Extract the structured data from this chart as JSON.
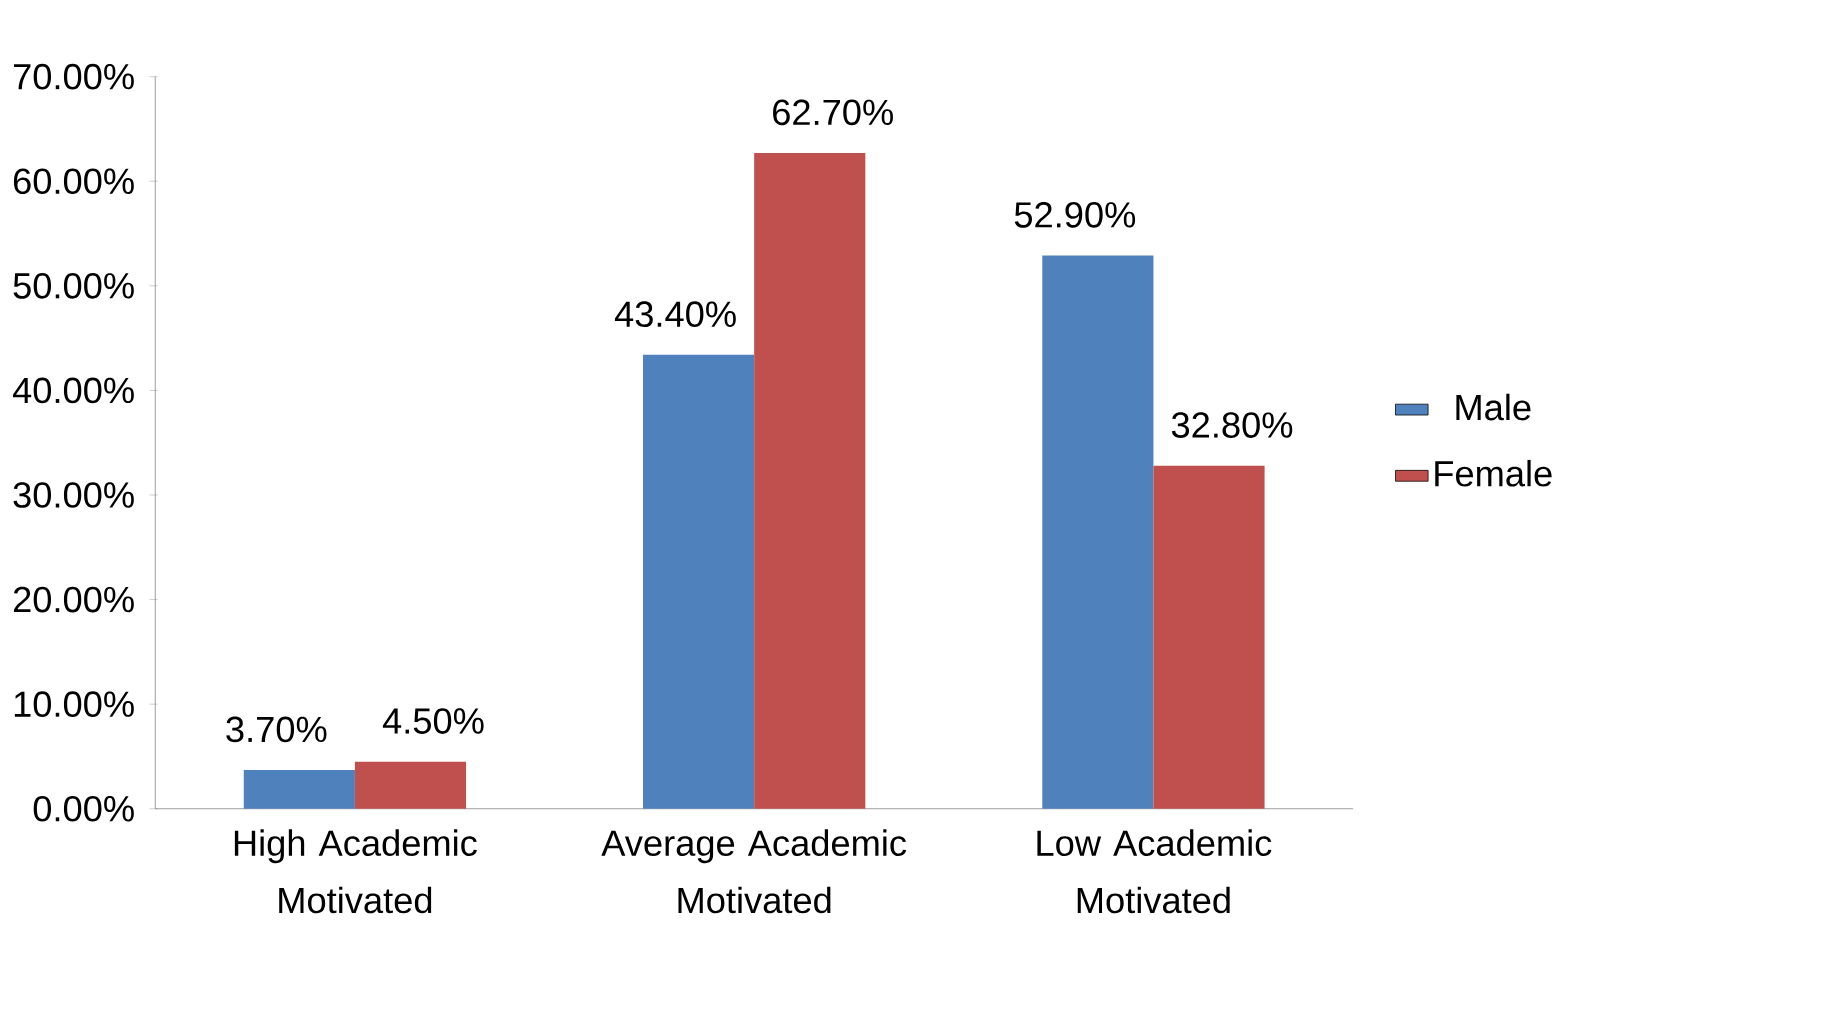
{
  "chart_data": {
    "type": "bar",
    "categories": [
      "High Academic Motivated",
      "Average Academic Motivated",
      "Low Academic Motivated"
    ],
    "series": [
      {
        "name": "Male",
        "color": "#4f81bd",
        "values": [
          3.7,
          43.4,
          52.9
        ],
        "value_labels": [
          "3.70%",
          "43.40%",
          "52.90%"
        ]
      },
      {
        "name": "Female",
        "color": "#c0504d",
        "values": [
          4.5,
          62.7,
          32.8
        ],
        "value_labels": [
          "4.50%",
          "62.70%",
          "32.80%"
        ]
      }
    ],
    "ylim": [
      0,
      70
    ],
    "yticks": [
      {
        "value": 0,
        "label": "0.00%"
      },
      {
        "value": 10,
        "label": "10.00%"
      },
      {
        "value": 20,
        "label": "20.00%"
      },
      {
        "value": 30,
        "label": "30.00%"
      },
      {
        "value": 40,
        "label": "40.00%"
      },
      {
        "value": 50,
        "label": "50.00%"
      },
      {
        "value": 60,
        "label": "60.00%"
      },
      {
        "value": 70,
        "label": "70.00%"
      }
    ],
    "legend": "right"
  }
}
